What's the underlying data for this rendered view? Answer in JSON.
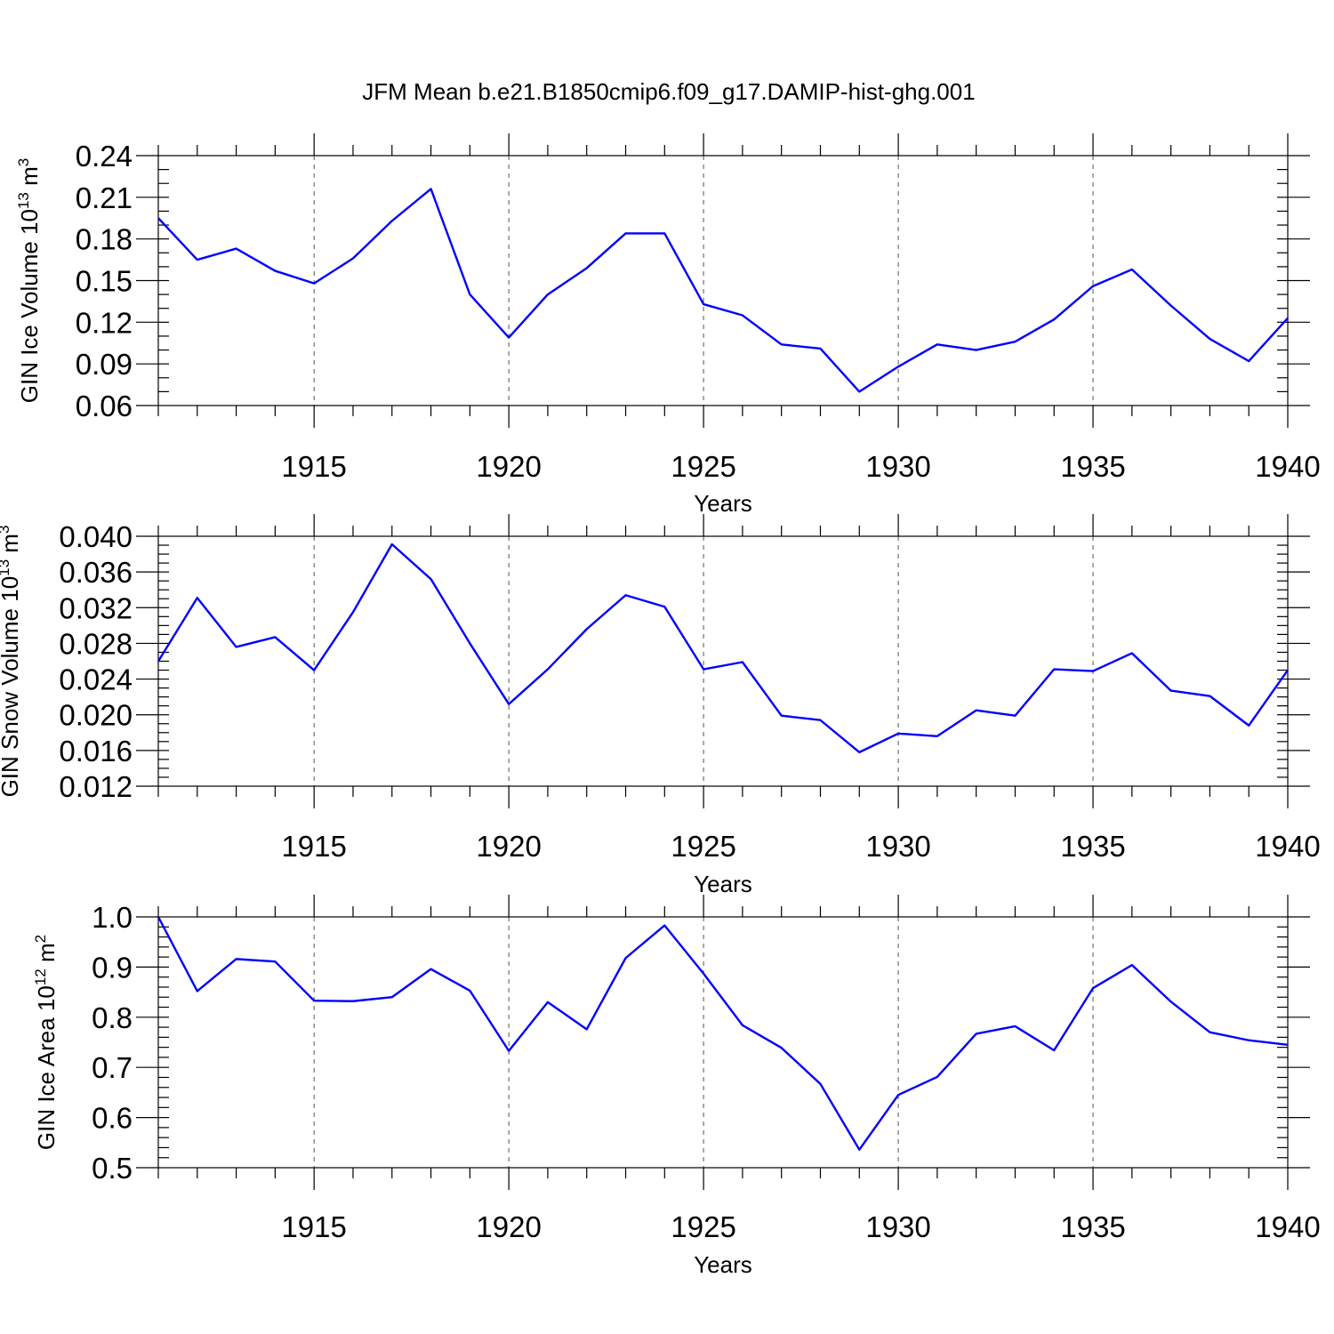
{
  "title": "JFM Mean b.e21.B1850cmip6.f09_g17.DAMIP-hist-ghg.001",
  "colors": {
    "series": "#0000ff",
    "axis": "#000000",
    "grid": "#555555"
  },
  "chart_data": [
    {
      "type": "line",
      "xlabel": "Years",
      "ylabel": {
        "text": "GIN Ice Volume 10",
        "sup1": "13",
        "mid": " m",
        "sup2": "3"
      },
      "xlim": [
        1911,
        1940
      ],
      "ylim": [
        0.06,
        0.24
      ],
      "x_ticks": [
        1915,
        1920,
        1925,
        1930,
        1935,
        1940
      ],
      "y_ticks": [
        "0.06",
        "0.09",
        "0.12",
        "0.15",
        "0.18",
        "0.21",
        "0.24"
      ],
      "y_minor_step": 0.01,
      "grid": "vertical dashed at major x ticks",
      "x": [
        1911,
        1912,
        1913,
        1914,
        1915,
        1916,
        1917,
        1918,
        1919,
        1920,
        1921,
        1922,
        1923,
        1924,
        1925,
        1926,
        1927,
        1928,
        1929,
        1930,
        1931,
        1932,
        1933,
        1934,
        1935,
        1936,
        1937,
        1938,
        1939,
        1940
      ],
      "y": [
        0.195,
        0.165,
        0.173,
        0.157,
        0.148,
        0.166,
        0.193,
        0.216,
        0.14,
        0.109,
        0.14,
        0.159,
        0.184,
        0.184,
        0.133,
        0.125,
        0.104,
        0.101,
        0.07,
        0.088,
        0.104,
        0.1,
        0.106,
        0.122,
        0.146,
        0.158,
        0.132,
        0.108,
        0.092,
        0.123
      ]
    },
    {
      "type": "line",
      "xlabel": "Years",
      "ylabel": {
        "text": "GIN Snow Volume 10",
        "sup1": "13",
        "mid": " m",
        "sup2": "3"
      },
      "xlim": [
        1911,
        1940
      ],
      "ylim": [
        0.012,
        0.04
      ],
      "x_ticks": [
        1915,
        1920,
        1925,
        1930,
        1935,
        1940
      ],
      "y_ticks": [
        "0.012",
        "0.016",
        "0.020",
        "0.024",
        "0.028",
        "0.032",
        "0.036",
        "0.040"
      ],
      "y_minor_step": 0.001,
      "grid": "vertical dashed at major x ticks",
      "x": [
        1911,
        1912,
        1913,
        1914,
        1915,
        1916,
        1917,
        1918,
        1919,
        1920,
        1921,
        1922,
        1923,
        1924,
        1925,
        1926,
        1927,
        1928,
        1929,
        1930,
        1931,
        1932,
        1933,
        1934,
        1935,
        1936,
        1937,
        1938,
        1939,
        1940
      ],
      "y": [
        0.026,
        0.0331,
        0.0276,
        0.0287,
        0.025,
        0.0315,
        0.0391,
        0.0352,
        0.028,
        0.0212,
        0.0251,
        0.0296,
        0.0334,
        0.0321,
        0.0251,
        0.0259,
        0.0199,
        0.0194,
        0.0158,
        0.0179,
        0.0176,
        0.0205,
        0.0199,
        0.0251,
        0.0249,
        0.0269,
        0.0227,
        0.0221,
        0.0188,
        0.025
      ]
    },
    {
      "type": "line",
      "xlabel": "Years",
      "ylabel": {
        "text": "GIN Ice Area 10",
        "sup1": "12",
        "mid": " m",
        "sup2": "2"
      },
      "xlim": [
        1911,
        1940
      ],
      "ylim": [
        0.5,
        1.0
      ],
      "x_ticks": [
        1915,
        1920,
        1925,
        1930,
        1935,
        1940
      ],
      "y_ticks": [
        "0.5",
        "0.6",
        "0.7",
        "0.8",
        "0.9",
        "1.0"
      ],
      "y_minor_step": 0.02,
      "grid": "vertical dashed at major x ticks",
      "x": [
        1911,
        1912,
        1913,
        1914,
        1915,
        1916,
        1917,
        1918,
        1919,
        1920,
        1921,
        1922,
        1923,
        1924,
        1925,
        1926,
        1927,
        1928,
        1929,
        1930,
        1931,
        1932,
        1933,
        1934,
        1935,
        1936,
        1937,
        1938,
        1939,
        1940
      ],
      "y": [
        1.0,
        0.852,
        0.916,
        0.911,
        0.833,
        0.832,
        0.84,
        0.896,
        0.853,
        0.733,
        0.83,
        0.776,
        0.918,
        0.983,
        0.887,
        0.784,
        0.739,
        0.667,
        0.536,
        0.645,
        0.681,
        0.767,
        0.782,
        0.734,
        0.858,
        0.904,
        0.831,
        0.77,
        0.754,
        0.745
      ]
    }
  ]
}
